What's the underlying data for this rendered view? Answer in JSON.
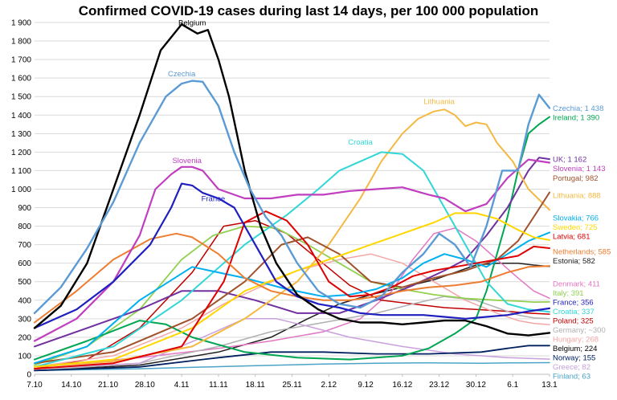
{
  "chart_data": {
    "type": "line",
    "title": "Confirmed COVID-19 cases during last 14 days, per 100 000 population",
    "xlabel": "",
    "ylabel": "",
    "ylim": [
      0,
      1900
    ],
    "yticks": [
      0,
      100,
      200,
      300,
      400,
      500,
      600,
      700,
      800,
      900,
      1000,
      1100,
      1200,
      1300,
      1400,
      1500,
      1600,
      1700,
      1800,
      1900
    ],
    "ytick_labels": [
      "0",
      "100",
      "200",
      "300",
      "400",
      "500",
      "600",
      "700",
      "800",
      "900",
      "1 000",
      "1 100",
      "1 200",
      "1 300",
      "1 400",
      "1 500",
      "1 600",
      "1 700",
      "1 800",
      "1 900"
    ],
    "xlim": [
      0,
      98
    ],
    "xticks": [
      0,
      7,
      14,
      21,
      28,
      35,
      42,
      49,
      56,
      63,
      70,
      77,
      84,
      91,
      98
    ],
    "xtick_labels": [
      "7.10",
      "14.10",
      "21.10",
      "28.10",
      "4.11",
      "11.11",
      "18.11",
      "25.11",
      "2.12",
      "9.12",
      "16.12",
      "23.12",
      "30.12",
      "6.1",
      "13.1"
    ],
    "grid": true,
    "series": [
      {
        "name": "Belgium",
        "label": "Belgium; 224",
        "color": "#000000",
        "width": 2.4,
        "x": [
          0,
          5,
          10,
          15,
          20,
          24,
          28,
          31,
          33,
          35,
          37,
          40,
          43,
          46,
          50,
          54,
          58,
          62,
          66,
          70,
          74,
          78,
          82,
          86,
          90,
          94,
          98
        ],
        "y": [
          250,
          370,
          600,
          1000,
          1400,
          1750,
          1890,
          1840,
          1860,
          1700,
          1500,
          1100,
          800,
          600,
          430,
          350,
          300,
          280,
          280,
          270,
          280,
          290,
          290,
          260,
          220,
          210,
          224
        ]
      },
      {
        "name": "Czechia",
        "label": "Czechia; 1 438",
        "color": "#5b9bd5",
        "width": 2.4,
        "x": [
          0,
          5,
          10,
          15,
          20,
          25,
          28,
          30,
          32,
          35,
          38,
          41,
          44,
          47,
          50,
          54,
          58,
          62,
          66,
          70,
          74,
          77,
          80,
          83,
          86,
          89,
          92,
          94,
          96,
          98
        ],
        "y": [
          330,
          470,
          680,
          930,
          1250,
          1500,
          1570,
          1585,
          1580,
          1450,
          1200,
          1000,
          850,
          750,
          600,
          450,
          380,
          360,
          420,
          550,
          650,
          760,
          700,
          580,
          800,
          1100,
          1100,
          1350,
          1510,
          1438
        ]
      },
      {
        "name": "Ireland",
        "label": "Ireland; 1 390",
        "color": "#00a651",
        "width": 2.0,
        "x": [
          0,
          10,
          20,
          25,
          30,
          40,
          50,
          60,
          70,
          75,
          80,
          84,
          86,
          88,
          90,
          92,
          94,
          96,
          98
        ],
        "y": [
          80,
          180,
          290,
          270,
          200,
          120,
          90,
          80,
          100,
          140,
          220,
          300,
          450,
          650,
          850,
          1100,
          1300,
          1350,
          1390
        ]
      },
      {
        "name": "UK",
        "label": "UK; 1 162",
        "color": "#7030a0",
        "width": 2.0,
        "x": [
          0,
          10,
          20,
          28,
          35,
          42,
          50,
          58,
          65,
          72,
          78,
          82,
          86,
          90,
          94,
          96,
          98
        ],
        "y": [
          150,
          250,
          350,
          450,
          450,
          400,
          330,
          330,
          400,
          480,
          560,
          620,
          750,
          900,
          1100,
          1170,
          1162
        ]
      },
      {
        "name": "Slovenia",
        "label": "Slovenia; 1 143",
        "color": "#bf3fbf",
        "width": 2.2,
        "x": [
          0,
          8,
          15,
          20,
          23,
          26,
          28,
          30,
          32,
          35,
          40,
          45,
          50,
          55,
          60,
          65,
          70,
          75,
          78,
          82,
          86,
          90,
          94,
          98
        ],
        "y": [
          180,
          300,
          500,
          750,
          1000,
          1080,
          1120,
          1120,
          1100,
          1000,
          950,
          950,
          970,
          970,
          990,
          1000,
          1010,
          970,
          950,
          880,
          920,
          1060,
          1160,
          1143
        ]
      },
      {
        "name": "Lithuania",
        "label": "Lithuania; 888",
        "color": "#f4b942",
        "width": 2.0,
        "x": [
          0,
          15,
          30,
          40,
          50,
          56,
          62,
          66,
          70,
          73,
          76,
          78,
          80,
          82,
          84,
          86,
          88,
          91,
          94,
          98
        ],
        "y": [
          40,
          70,
          150,
          300,
          500,
          700,
          950,
          1150,
          1300,
          1380,
          1420,
          1430,
          1400,
          1340,
          1360,
          1350,
          1250,
          1150,
          1000,
          888
        ]
      },
      {
        "name": "Portugal",
        "label": "Portugal; 982",
        "color": "#a0522d",
        "width": 2.0,
        "x": [
          0,
          15,
          30,
          40,
          47,
          52,
          58,
          64,
          70,
          76,
          82,
          88,
          92,
          95,
          98
        ],
        "y": [
          60,
          120,
          300,
          500,
          700,
          740,
          650,
          500,
          470,
          520,
          560,
          620,
          720,
          850,
          982
        ]
      },
      {
        "name": "Croatia",
        "label": "Croatia; 337",
        "color": "#33d6d6",
        "width": 2.0,
        "x": [
          0,
          15,
          28,
          40,
          48,
          54,
          58,
          62,
          66,
          70,
          74,
          78,
          82,
          86,
          90,
          94,
          98
        ],
        "y": [
          40,
          150,
          400,
          700,
          860,
          1000,
          1100,
          1150,
          1200,
          1190,
          1100,
          900,
          700,
          500,
          380,
          350,
          337
        ]
      },
      {
        "name": "France",
        "label": "France; 356",
        "color": "#1f1fbf",
        "width": 2.2,
        "x": [
          0,
          8,
          15,
          22,
          26,
          28,
          30,
          32,
          35,
          38,
          42,
          46,
          50,
          54,
          58,
          62,
          66,
          70,
          74,
          78,
          82,
          86,
          90,
          94,
          98
        ],
        "y": [
          250,
          350,
          500,
          700,
          900,
          1030,
          1020,
          980,
          950,
          900,
          700,
          500,
          420,
          380,
          360,
          330,
          320,
          320,
          320,
          310,
          300,
          310,
          320,
          340,
          356
        ]
      },
      {
        "name": "Slovakia",
        "label": "Slovakia; 766",
        "color": "#00b0f0",
        "width": 2.0,
        "x": [
          0,
          10,
          20,
          30,
          40,
          48,
          55,
          60,
          65,
          70,
          74,
          78,
          82,
          86,
          90,
          94,
          98
        ],
        "y": [
          60,
          150,
          400,
          580,
          520,
          460,
          420,
          430,
          460,
          520,
          600,
          650,
          620,
          580,
          650,
          720,
          766
        ]
      },
      {
        "name": "Sweden",
        "label": "Sweden; 725",
        "color": "#ffd700",
        "width": 2.0,
        "x": [
          0,
          15,
          30,
          40,
          50,
          58,
          64,
          70,
          76,
          80,
          84,
          88,
          92,
          95,
          98
        ],
        "y": [
          40,
          80,
          250,
          450,
          560,
          640,
          700,
          760,
          820,
          870,
          870,
          840,
          780,
          740,
          725
        ]
      },
      {
        "name": "Latvia",
        "label": "Latvia; 681",
        "color": "#e00000",
        "width": 2.0,
        "x": [
          0,
          15,
          28,
          36,
          40,
          44,
          48,
          52,
          56,
          60,
          64,
          68,
          72,
          76,
          80,
          84,
          88,
          92,
          95,
          98
        ],
        "y": [
          30,
          60,
          150,
          500,
          820,
          880,
          830,
          700,
          500,
          420,
          430,
          470,
          530,
          560,
          580,
          600,
          620,
          640,
          690,
          681
        ]
      },
      {
        "name": "Netherlands",
        "label": "Netherlands; 585",
        "color": "#ed7d31",
        "width": 2.0,
        "x": [
          0,
          8,
          15,
          22,
          27,
          30,
          35,
          40,
          45,
          50,
          55,
          60,
          65,
          70,
          75,
          80,
          85,
          90,
          94,
          98
        ],
        "y": [
          280,
          450,
          620,
          730,
          760,
          740,
          650,
          520,
          450,
          420,
          400,
          400,
          420,
          450,
          470,
          480,
          500,
          550,
          580,
          585
        ]
      },
      {
        "name": "Estonia",
        "label": "Estonia; 582",
        "color": "#202020",
        "width": 1.5,
        "x": [
          0,
          20,
          35,
          45,
          52,
          58,
          64,
          70,
          76,
          80,
          84,
          88,
          92,
          95,
          98
        ],
        "y": [
          20,
          50,
          120,
          200,
          300,
          380,
          430,
          470,
          510,
          550,
          590,
          600,
          600,
          590,
          582
        ]
      },
      {
        "name": "Denmark",
        "label": "Denmark; 411",
        "color": "#e377c2",
        "width": 1.5,
        "x": [
          0,
          20,
          35,
          45,
          55,
          62,
          68,
          72,
          76,
          80,
          84,
          88,
          92,
          95,
          98
        ],
        "y": [
          40,
          90,
          140,
          180,
          230,
          300,
          450,
          620,
          760,
          790,
          720,
          620,
          520,
          450,
          411
        ]
      },
      {
        "name": "Italy",
        "label": "Italy; 391",
        "color": "#92d050",
        "width": 1.8,
        "x": [
          0,
          10,
          20,
          28,
          34,
          40,
          46,
          52,
          58,
          64,
          70,
          76,
          82,
          88,
          92,
          95,
          98
        ],
        "y": [
          50,
          150,
          350,
          620,
          750,
          800,
          790,
          700,
          600,
          500,
          460,
          430,
          410,
          400,
          395,
          390,
          391
        ]
      },
      {
        "name": "Poland",
        "label": "Poland; 325",
        "color": "#c00000",
        "width": 1.5,
        "x": [
          0,
          10,
          20,
          30,
          36,
          42,
          48,
          54,
          60,
          66,
          72,
          78,
          84,
          90,
          94,
          98
        ],
        "y": [
          30,
          80,
          250,
          550,
          800,
          830,
          760,
          620,
          480,
          400,
          380,
          360,
          350,
          340,
          330,
          325
        ]
      },
      {
        "name": "Germany",
        "label": "Germany; ~300",
        "color": "#b0b0b0",
        "width": 1.5,
        "x": [
          0,
          20,
          35,
          45,
          55,
          65,
          72,
          78,
          84,
          88,
          92,
          95,
          98
        ],
        "y": [
          20,
          60,
          150,
          230,
          280,
          330,
          380,
          420,
          400,
          360,
          320,
          305,
          300
        ]
      },
      {
        "name": "Hungary",
        "label": "Hungary; 268",
        "color": "#f4a6a6",
        "width": 1.5,
        "x": [
          0,
          15,
          28,
          36,
          42,
          50,
          58,
          64,
          70,
          76,
          82,
          88,
          92,
          95,
          98
        ],
        "y": [
          40,
          100,
          250,
          380,
          460,
          560,
          620,
          650,
          600,
          500,
          400,
          330,
          290,
          275,
          268
        ]
      },
      {
        "name": "Norway",
        "label": "Norway; 155",
        "color": "#002060",
        "width": 1.8,
        "x": [
          0,
          20,
          35,
          45,
          55,
          65,
          75,
          85,
          90,
          94,
          98
        ],
        "y": [
          20,
          40,
          90,
          120,
          120,
          110,
          110,
          120,
          140,
          155,
          155
        ]
      },
      {
        "name": "Greece",
        "label": "Greece; 82",
        "color": "#c9a0dc",
        "width": 1.5,
        "x": [
          0,
          20,
          32,
          40,
          46,
          52,
          60,
          70,
          80,
          90,
          98
        ],
        "y": [
          30,
          60,
          200,
          300,
          300,
          260,
          200,
          150,
          110,
          90,
          82
        ]
      },
      {
        "name": "Finland",
        "label": "Finland; 63",
        "color": "#4ba3c7",
        "width": 1.5,
        "x": [
          0,
          20,
          40,
          55,
          65,
          75,
          85,
          92,
          98
        ],
        "y": [
          20,
          30,
          45,
          55,
          60,
          62,
          60,
          62,
          63
        ]
      }
    ],
    "inline_labels": [
      {
        "series": "Belgium",
        "text": "Belgium",
        "x": 30,
        "y": 1885
      },
      {
        "series": "Czechia",
        "text": "Czechia",
        "x": 28,
        "y": 1610
      },
      {
        "series": "Slovenia",
        "text": "Slovenia",
        "x": 29,
        "y": 1140
      },
      {
        "series": "France",
        "text": "France",
        "x": 34,
        "y": 935
      },
      {
        "series": "Croatia",
        "text": "Croatia",
        "x": 62,
        "y": 1240
      },
      {
        "series": "Lithuania",
        "text": "Lithuania",
        "x": 77,
        "y": 1460
      }
    ]
  }
}
